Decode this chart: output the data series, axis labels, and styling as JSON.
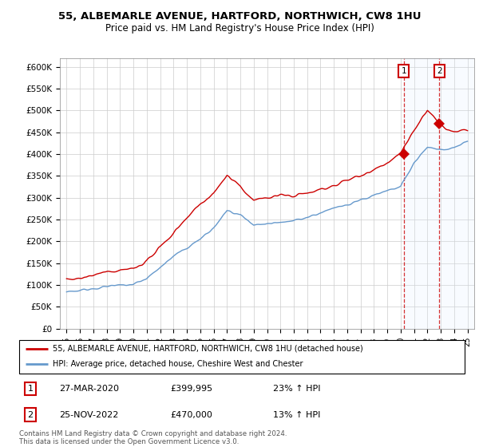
{
  "title": "55, ALBEMARLE AVENUE, HARTFORD, NORTHWICH, CW8 1HU",
  "subtitle": "Price paid vs. HM Land Registry's House Price Index (HPI)",
  "ylabel_ticks": [
    "£0",
    "£50K",
    "£100K",
    "£150K",
    "£200K",
    "£250K",
    "£300K",
    "£350K",
    "£400K",
    "£450K",
    "£500K",
    "£550K",
    "£600K"
  ],
  "ylim": [
    0,
    620000
  ],
  "ytick_vals": [
    0,
    50000,
    100000,
    150000,
    200000,
    250000,
    300000,
    350000,
    400000,
    450000,
    500000,
    550000,
    600000
  ],
  "sale1_year": 2020.23,
  "sale1_price": 399995,
  "sale2_year": 2022.9,
  "sale2_price": 470000,
  "red_color": "#cc0000",
  "blue_color": "#6699cc",
  "shaded_color": "#ddeeff",
  "legend_label1": "55, ALBEMARLE AVENUE, HARTFORD, NORTHWICH, CW8 1HU (detached house)",
  "legend_label2": "HPI: Average price, detached house, Cheshire West and Chester",
  "footer": "Contains HM Land Registry data © Crown copyright and database right 2024.\nThis data is licensed under the Open Government Licence v3.0.",
  "table_row1": [
    "1",
    "27-MAR-2020",
    "£399,995",
    "23% ↑ HPI"
  ],
  "table_row2": [
    "2",
    "25-NOV-2022",
    "£470,000",
    "13% ↑ HPI"
  ]
}
